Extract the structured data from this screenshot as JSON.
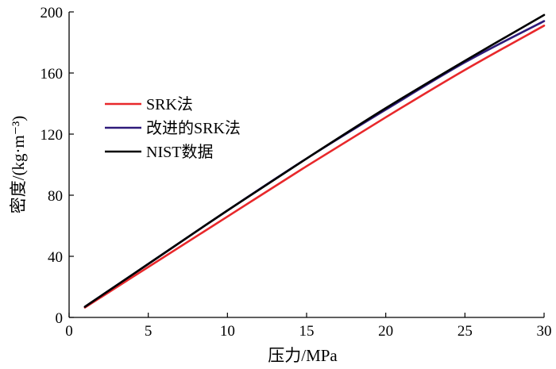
{
  "chart_data": {
    "type": "line",
    "xlabel": "压力/MPa",
    "ylabel": "密度/(kg·m⁻³)",
    "xlim": [
      0,
      30
    ],
    "ylim": [
      0,
      200
    ],
    "xticks": [
      0,
      5,
      10,
      15,
      20,
      25,
      30
    ],
    "yticks": [
      0,
      40,
      80,
      120,
      160,
      200
    ],
    "grid": false,
    "legend_position": "upper-left",
    "series": [
      {
        "name": "SRK法",
        "color": "#e8282b",
        "x": [
          1,
          5,
          10,
          15,
          20,
          25,
          30
        ],
        "y": [
          6.5,
          33,
          66,
          99,
          131,
          162,
          191
        ]
      },
      {
        "name": "改进的SRK法",
        "color": "#2e1a7a",
        "x": [
          1,
          5,
          10,
          15,
          20,
          25,
          30
        ],
        "y": [
          7,
          35,
          70,
          104,
          136,
          167,
          194
        ]
      },
      {
        "name": "NIST数据",
        "color": "#000000",
        "x": [
          1,
          5,
          10,
          15,
          20,
          25,
          30
        ],
        "y": [
          7,
          35,
          70,
          104,
          137,
          168,
          198
        ]
      }
    ]
  }
}
